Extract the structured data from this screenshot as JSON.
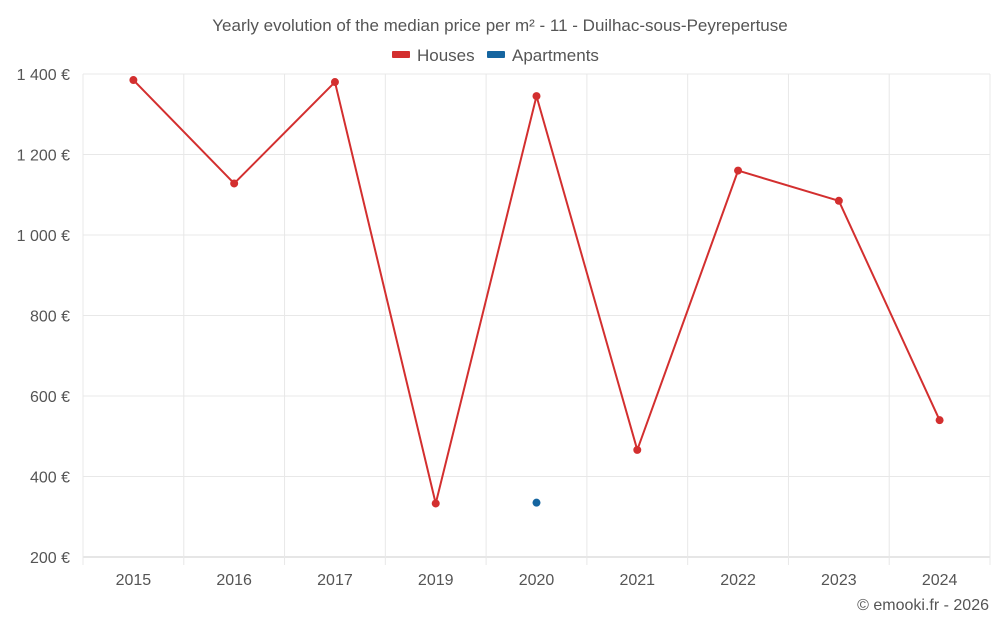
{
  "chart_data": {
    "type": "line",
    "title": "Yearly evolution of the median price per m² - 11 - Duilhac-sous-Peyrepertuse",
    "categories": [
      "2015",
      "2016",
      "2017",
      "2019",
      "2020",
      "2021",
      "2022",
      "2023",
      "2024"
    ],
    "series": [
      {
        "name": "Houses",
        "color": "#d32f2f",
        "values": [
          1385,
          1128,
          1380,
          333,
          1345,
          466,
          1160,
          1085,
          540
        ]
      },
      {
        "name": "Apartments",
        "color": "#1565a0",
        "values": [
          null,
          null,
          null,
          null,
          335,
          null,
          null,
          null,
          null
        ]
      }
    ],
    "y_ticks": [
      "200 €",
      "400 €",
      "600 €",
      "800 €",
      "1 000 €",
      "1 200 €",
      "1 400 €"
    ],
    "y_tick_values": [
      200,
      400,
      600,
      800,
      1000,
      1200,
      1400
    ],
    "ylim": [
      200,
      1400
    ],
    "grid": true,
    "legend": "top-center",
    "credit": "© emooki.fr - 2026"
  }
}
